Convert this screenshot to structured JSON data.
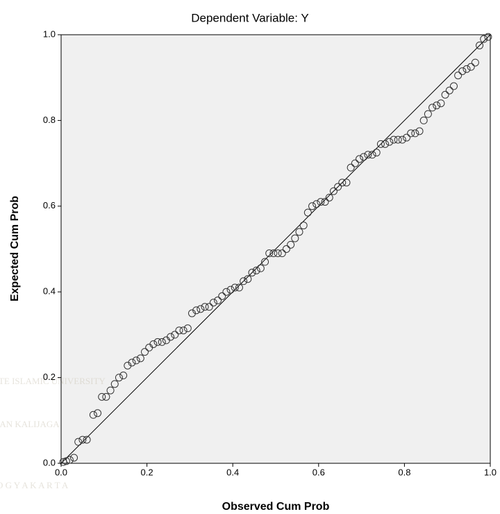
{
  "chart_data": {
    "type": "scatter",
    "title": "Dependent Variable: Y",
    "x_label": "Observed Cum Prob",
    "y_label": "Expected Cum Prob",
    "watermark": [
      "ATE ISLAMIC UNIVERSITY",
      "NAN KALIJAGA",
      "O G Y A K A R T A"
    ],
    "xlim": [
      0,
      1
    ],
    "ylim": [
      0,
      1
    ],
    "xticks": [
      {
        "value": 0,
        "label": "0.0"
      },
      0.2,
      0.4,
      0.6,
      0.8,
      {
        "value": 1,
        "label": "1.0"
      }
    ],
    "yticks": [
      {
        "value": 0,
        "label": "0.0"
      },
      0.2,
      0.4,
      0.6,
      0.8,
      {
        "value": 1,
        "label": "1.0"
      }
    ],
    "grid": false,
    "color": "#333333",
    "x": [
      0.005,
      0.012,
      0.02,
      0.03,
      0.04,
      0.05,
      0.06,
      0.075,
      0.085,
      0.095,
      0.105,
      0.115,
      0.125,
      0.135,
      0.145,
      0.155,
      0.165,
      0.175,
      0.185,
      0.195,
      0.205,
      0.215,
      0.225,
      0.235,
      0.245,
      0.255,
      0.265,
      0.275,
      0.285,
      0.295,
      0.305,
      0.315,
      0.325,
      0.335,
      0.345,
      0.355,
      0.365,
      0.375,
      0.385,
      0.395,
      0.405,
      0.415,
      0.425,
      0.435,
      0.445,
      0.455,
      0.465,
      0.475,
      0.485,
      0.495,
      0.505,
      0.515,
      0.525,
      0.535,
      0.545,
      0.555,
      0.565,
      0.575,
      0.585,
      0.595,
      0.605,
      0.615,
      0.625,
      0.635,
      0.645,
      0.655,
      0.665,
      0.675,
      0.685,
      0.695,
      0.705,
      0.715,
      0.725,
      0.735,
      0.745,
      0.755,
      0.765,
      0.775,
      0.785,
      0.795,
      0.805,
      0.815,
      0.825,
      0.835,
      0.845,
      0.855,
      0.865,
      0.875,
      0.885,
      0.895,
      0.905,
      0.915,
      0.925,
      0.935,
      0.945,
      0.955,
      0.965,
      0.975,
      0.985,
      0.995
    ],
    "values": [
      0.003,
      0.005,
      0.008,
      0.013,
      0.05,
      0.055,
      0.055,
      0.113,
      0.117,
      0.155,
      0.155,
      0.17,
      0.185,
      0.2,
      0.205,
      0.228,
      0.235,
      0.24,
      0.245,
      0.26,
      0.27,
      0.278,
      0.283,
      0.283,
      0.287,
      0.295,
      0.3,
      0.31,
      0.31,
      0.315,
      0.35,
      0.357,
      0.36,
      0.365,
      0.365,
      0.375,
      0.38,
      0.39,
      0.4,
      0.405,
      0.41,
      0.41,
      0.425,
      0.43,
      0.445,
      0.45,
      0.455,
      0.47,
      0.49,
      0.49,
      0.49,
      0.49,
      0.5,
      0.51,
      0.525,
      0.54,
      0.555,
      0.585,
      0.6,
      0.605,
      0.61,
      0.61,
      0.62,
      0.635,
      0.645,
      0.655,
      0.655,
      0.69,
      0.7,
      0.71,
      0.715,
      0.72,
      0.72,
      0.725,
      0.745,
      0.745,
      0.75,
      0.755,
      0.755,
      0.755,
      0.76,
      0.77,
      0.77,
      0.775,
      0.8,
      0.815,
      0.83,
      0.835,
      0.84,
      0.86,
      0.87,
      0.88,
      0.905,
      0.915,
      0.92,
      0.925,
      0.935,
      0.975,
      0.99,
      0.995
    ]
  }
}
